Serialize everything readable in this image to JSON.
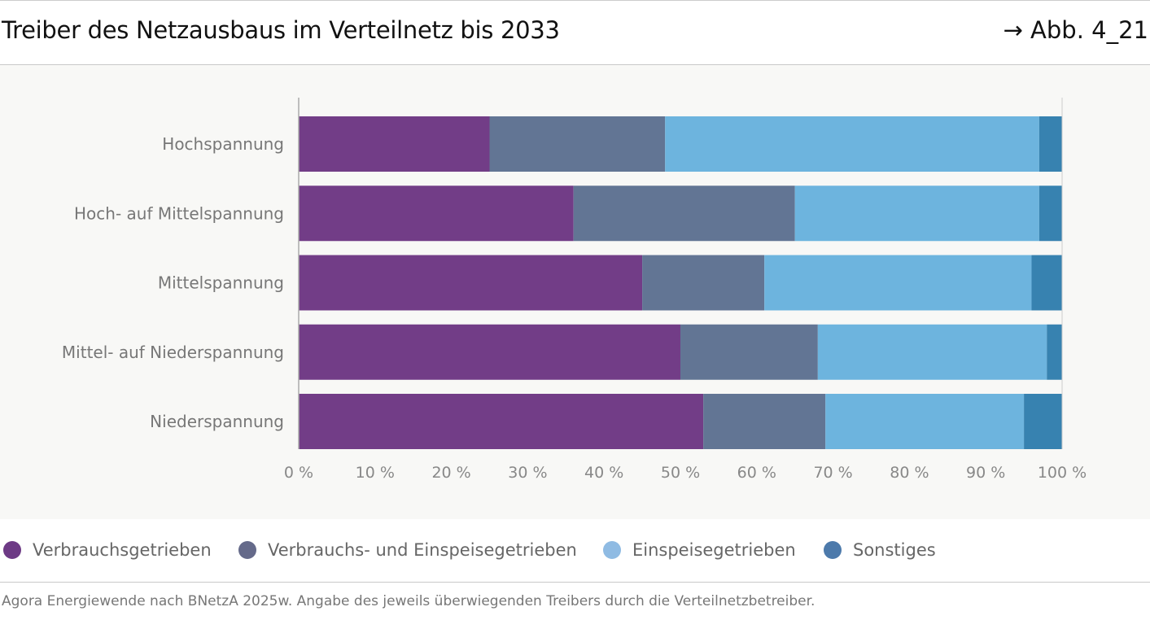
{
  "header": {
    "title": "Treiber des Netzausbaus im Verteilnetz bis 2033",
    "figure_ref": "→ Abb. 4_21"
  },
  "chart_data": {
    "type": "bar",
    "orientation": "horizontal",
    "stacked": true,
    "categories": [
      "Hochspannung",
      "Hoch- auf Mittelspannung",
      "Mittelspannung",
      "Mittel- auf Niederspannung",
      "Niederspannung"
    ],
    "series": [
      {
        "name": "Verbrauchsgetrieben",
        "color": "#723d87",
        "values": [
          25,
          36,
          45,
          50,
          53
        ]
      },
      {
        "name": "Verbrauchs- und Einspeisegetrieben",
        "color": "#627594",
        "values": [
          23,
          29,
          16,
          18,
          16
        ]
      },
      {
        "name": "Einspeisegetrieben",
        "color": "#6db4de",
        "values": [
          49,
          32,
          35,
          30,
          26
        ]
      },
      {
        "name": "Sonstiges",
        "color": "#3782b0",
        "values": [
          3,
          3,
          4,
          2,
          5
        ]
      }
    ],
    "xlim": [
      0,
      100
    ],
    "xticks": [
      "0 %",
      "10 %",
      "20 %",
      "30 %",
      "40 %",
      "50 %",
      "60 %",
      "70 %",
      "80 %",
      "90 %",
      "100 %"
    ],
    "legend_position": "bottom",
    "grid": false
  },
  "legend": [
    {
      "label": "Verbrauchsgetrieben",
      "color": "#6d3a85"
    },
    {
      "label": "Verbrauchs- und Einspeisegetrieben",
      "color": "#656a8a"
    },
    {
      "label": "Einspeisegetrieben",
      "color": "#8fbbe3"
    },
    {
      "label": "Sonstiges",
      "color": "#4d7aab"
    }
  ],
  "source": "Agora Energiewende nach BNetzA 2025w. Angabe des jeweils überwiegenden Treibers durch die Verteilnetzbetreiber."
}
